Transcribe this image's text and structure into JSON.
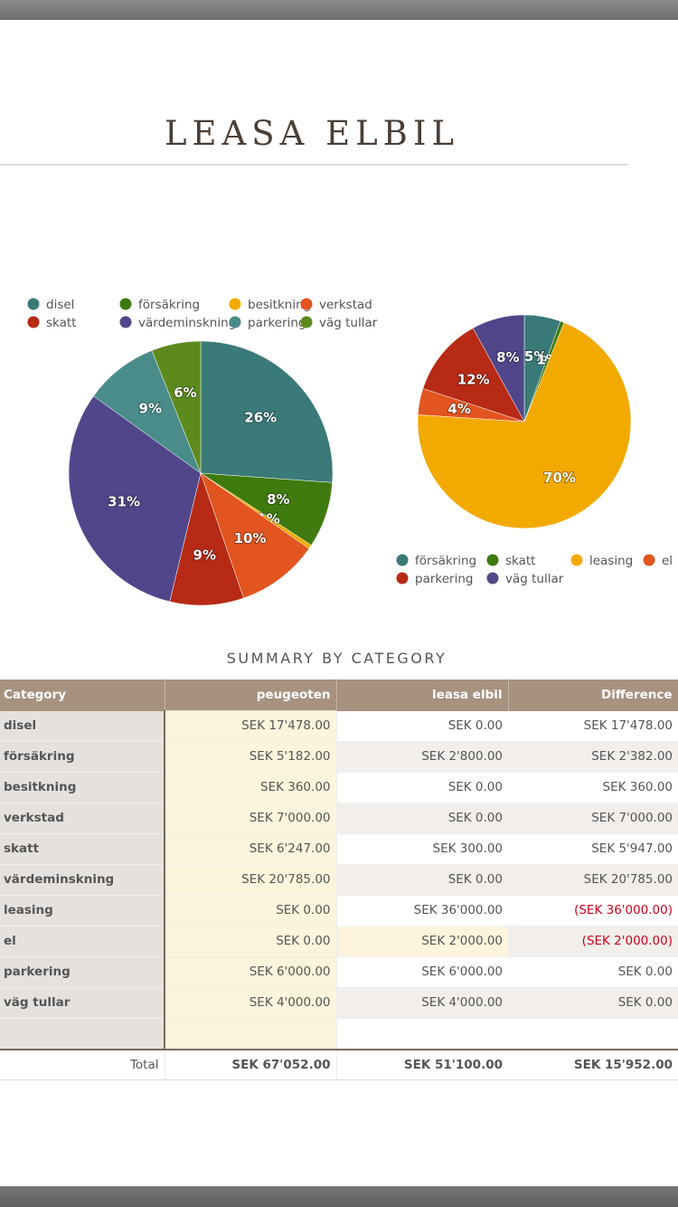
{
  "title": "LEASA ELBIL",
  "chart_data": [
    {
      "type": "pie",
      "legend": [
        "disel",
        "försäkring",
        "besitkning",
        "verkstad",
        "skatt",
        "värdeminskning",
        "parkering",
        "väg tullar"
      ],
      "legend_placement": "top",
      "slices": [
        {
          "name": "disel",
          "value": 26,
          "label": "26%",
          "color": "#3a7a78"
        },
        {
          "name": "försäkring",
          "value": 8,
          "label": "8%",
          "color": "#3f7a0e"
        },
        {
          "name": "besitkning",
          "value": 0.5,
          "label": "1%",
          "color": "#f2a900"
        },
        {
          "name": "verkstad",
          "value": 10,
          "label": "10%",
          "color": "#e25420"
        },
        {
          "name": "skatt",
          "value": 9,
          "label": "9%",
          "color": "#b72a15"
        },
        {
          "name": "värdeminskning",
          "value": 31,
          "label": "31%",
          "color": "#51468a"
        },
        {
          "name": "parkering",
          "value": 9,
          "label": "9%",
          "color": "#4a8c8a"
        },
        {
          "name": "väg tullar",
          "value": 6,
          "label": "6%",
          "color": "#5d8a1d"
        }
      ]
    },
    {
      "type": "pie",
      "legend": [
        "försäkring",
        "skatt",
        "leasing",
        "el",
        "parkering",
        "väg tullar"
      ],
      "legend_placement": "bottom",
      "slices": [
        {
          "name": "försäkring",
          "value": 5.5,
          "label": "5%",
          "color": "#3a7a78"
        },
        {
          "name": "skatt",
          "value": 0.6,
          "label": "1%",
          "color": "#3f7a0e"
        },
        {
          "name": "leasing",
          "value": 70,
          "label": "70%",
          "color": "#f2a900"
        },
        {
          "name": "el",
          "value": 4,
          "label": "4%",
          "color": "#e25420"
        },
        {
          "name": "parkering",
          "value": 12,
          "label": "12%",
          "color": "#b72a15"
        },
        {
          "name": "väg tullar",
          "value": 8,
          "label": "8%",
          "color": "#51468a"
        }
      ]
    }
  ],
  "summary": {
    "title": "SUMMARY BY CATEGORY",
    "headers": [
      "Category",
      "peugeoten",
      "leasa elbil",
      "Difference"
    ],
    "rows": [
      [
        "disel",
        "SEK 17'478.00",
        "SEK 0.00",
        "SEK 17'478.00"
      ],
      [
        "försäkring",
        "SEK 5'182.00",
        "SEK 2'800.00",
        "SEK 2'382.00"
      ],
      [
        "besitkning",
        "SEK 360.00",
        "SEK 0.00",
        "SEK 360.00"
      ],
      [
        "verkstad",
        "SEK 7'000.00",
        "SEK 0.00",
        "SEK 7'000.00"
      ],
      [
        "skatt",
        "SEK 6'247.00",
        "SEK 300.00",
        "SEK 5'947.00"
      ],
      [
        "värdeminskning",
        "SEK 20'785.00",
        "SEK 0.00",
        "SEK 20'785.00"
      ],
      [
        "leasing",
        "SEK 0.00",
        "SEK 36'000.00",
        "(SEK 36'000.00)"
      ],
      [
        "el",
        "SEK 0.00",
        "SEK 2'000.00",
        "(SEK 2'000.00)"
      ],
      [
        "parkering",
        "SEK 6'000.00",
        "SEK 6'000.00",
        "SEK 0.00"
      ],
      [
        "väg tullar",
        "SEK 4'000.00",
        "SEK 4'000.00",
        "SEK 0.00"
      ],
      [
        "",
        "",
        "",
        ""
      ]
    ],
    "total": [
      "Total",
      "SEK 67'052.00",
      "SEK 51'100.00",
      "SEK 15'952.00"
    ]
  }
}
